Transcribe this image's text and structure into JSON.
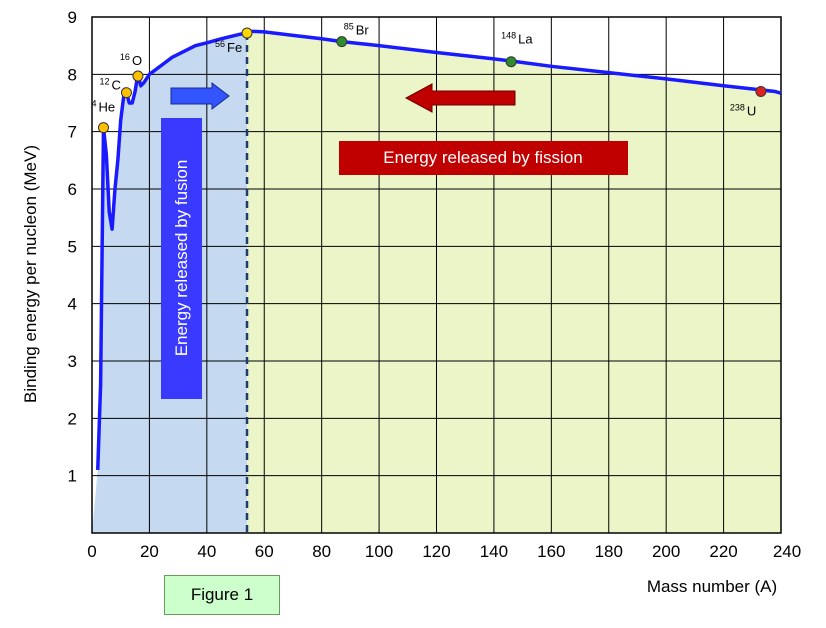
{
  "chart_data": {
    "type": "line",
    "xlabel": "Mass number (A)",
    "ylabel": "Binding energy per nucleon (MeV)",
    "xlim": [
      0,
      240
    ],
    "ylim": [
      0,
      9
    ],
    "x_ticks": [
      0,
      20,
      40,
      60,
      80,
      100,
      120,
      140,
      160,
      180,
      200,
      220,
      240
    ],
    "y_ticks": [
      1,
      2,
      3,
      4,
      5,
      6,
      7,
      8,
      9
    ],
    "grid": true,
    "series": [
      {
        "color": "#1a1aff",
        "x": [
          2,
          3,
          4,
          5,
          6,
          7,
          8,
          9,
          10,
          11,
          12,
          13,
          14,
          15,
          16,
          17,
          18,
          20,
          24,
          28,
          32,
          36,
          40,
          45,
          50,
          56,
          60,
          70,
          80,
          87,
          100,
          120,
          140,
          148,
          160,
          180,
          200,
          220,
          238,
          240
        ],
        "y": [
          1.1,
          2.6,
          7.07,
          6.6,
          5.6,
          5.3,
          6.0,
          6.5,
          7.2,
          7.6,
          7.68,
          7.5,
          7.5,
          7.7,
          8.0,
          7.8,
          7.85,
          8.0,
          8.15,
          8.3,
          8.4,
          8.5,
          8.55,
          8.62,
          8.68,
          8.75,
          8.74,
          8.68,
          8.62,
          8.57,
          8.5,
          8.38,
          8.27,
          8.22,
          8.14,
          8.03,
          7.92,
          7.8,
          7.7,
          7.67
        ]
      }
    ],
    "points": [
      {
        "label": "He",
        "mass": "4",
        "x": 4,
        "y": 7.07,
        "color": "#ffc000"
      },
      {
        "label": "C",
        "mass": "12",
        "x": 12,
        "y": 7.68,
        "color": "#ffc000"
      },
      {
        "label": "O",
        "mass": "16",
        "x": 16,
        "y": 7.97,
        "color": "#ffc000"
      },
      {
        "label": "Fe",
        "mass": "56",
        "x": 54,
        "y": 8.72,
        "color": "#ffd700"
      },
      {
        "label": "Br",
        "mass": "85",
        "x": 87,
        "y": 8.57,
        "color": "#2e8b2e"
      },
      {
        "label": "La",
        "mass": "148",
        "x": 146,
        "y": 8.22,
        "color": "#2e8b2e"
      },
      {
        "label": "U",
        "mass": "238",
        "x": 233,
        "y": 7.7,
        "color": "#e02020"
      }
    ],
    "regions": [
      {
        "name": "fusion",
        "x_range": [
          0,
          54
        ],
        "color": "#c5d9f1"
      },
      {
        "name": "fission",
        "x_range": [
          54,
          240
        ],
        "color": "#ebf5c8"
      }
    ],
    "divider_x": 54,
    "annotations": {
      "fusion": "Energy released by fusion",
      "fission": "Energy released by fission"
    },
    "colors": {
      "fusion_banner": "#3a3aff",
      "fission_banner": "#c00000",
      "fusion_arrow": "#3355ff",
      "fission_arrow": "#c00000",
      "curve": "#1a1aff"
    }
  },
  "figure_label": "Figure 1"
}
